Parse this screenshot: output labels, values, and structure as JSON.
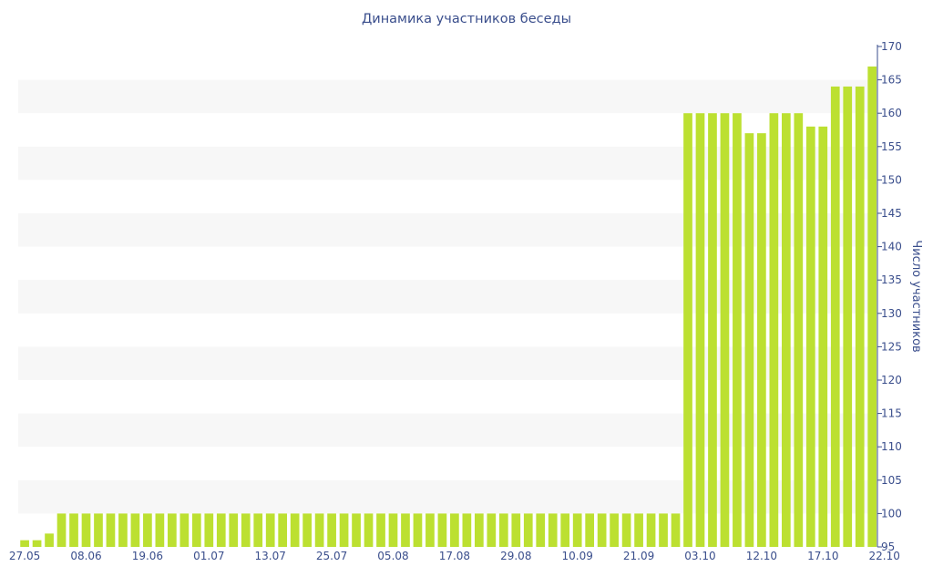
{
  "chart_data": {
    "type": "bar",
    "title": "Динамика участников беседы",
    "xlabel": "",
    "ylabel": "Число участников",
    "ylim": [
      95,
      170
    ],
    "yticks": [
      95,
      100,
      105,
      110,
      115,
      120,
      125,
      130,
      135,
      140,
      145,
      150,
      155,
      160,
      165,
      170
    ],
    "ytick_labels": [
      "95",
      "100",
      "105",
      "110",
      "115",
      "120",
      "125",
      "130",
      "135",
      "140",
      "145",
      "150",
      "155",
      "160",
      "165",
      "170"
    ],
    "y_axis_side": "right",
    "grid": "alternating horizontal bands",
    "legend": "none",
    "colors": {
      "bar": "#bce031",
      "text": "#3a4e8c",
      "band": "#f7f7f7",
      "axis": "#3a4e8c"
    },
    "xtick_labels": [
      {
        "index": 0,
        "label": "27.05"
      },
      {
        "index": 5,
        "label": "08.06"
      },
      {
        "index": 10,
        "label": "19.06"
      },
      {
        "index": 15,
        "label": "01.07"
      },
      {
        "index": 20,
        "label": "13.07"
      },
      {
        "index": 25,
        "label": "25.07"
      },
      {
        "index": 30,
        "label": "05.08"
      },
      {
        "index": 35,
        "label": "17.08"
      },
      {
        "index": 40,
        "label": "29.08"
      },
      {
        "index": 45,
        "label": "10.09"
      },
      {
        "index": 50,
        "label": "21.09"
      },
      {
        "index": 55,
        "label": "03.10"
      },
      {
        "index": 60,
        "label": "12.10"
      },
      {
        "index": 65,
        "label": "17.10"
      },
      {
        "index": 70,
        "label": "22.10"
      }
    ],
    "values": [
      96,
      96,
      97,
      100,
      100,
      100,
      100,
      100,
      100,
      100,
      100,
      100,
      100,
      100,
      100,
      100,
      100,
      100,
      100,
      100,
      100,
      100,
      100,
      100,
      100,
      100,
      100,
      100,
      100,
      100,
      100,
      100,
      100,
      100,
      100,
      100,
      100,
      100,
      100,
      100,
      100,
      100,
      100,
      100,
      100,
      100,
      100,
      100,
      100,
      100,
      100,
      100,
      100,
      100,
      160,
      160,
      160,
      160,
      160,
      157,
      157,
      160,
      160,
      160,
      158,
      158,
      164,
      164,
      164,
      167
    ]
  }
}
